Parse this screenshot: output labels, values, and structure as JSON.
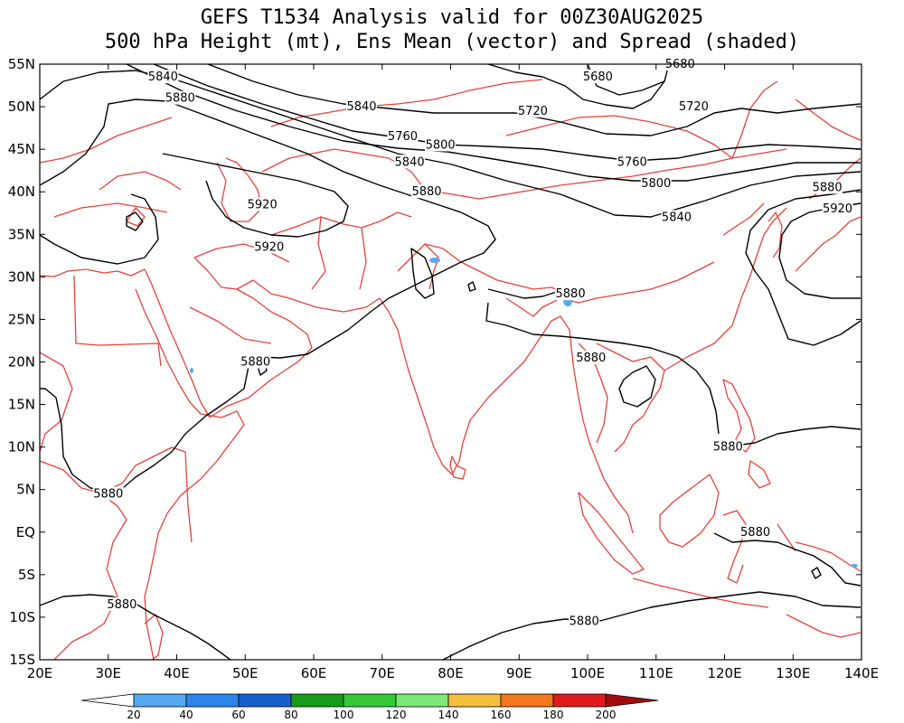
{
  "title": {
    "line1": "GEFS T1534 Analysis valid for 00Z30AUG2025",
    "line2": "500 hPa Height (mt), Ens Mean (vector) and Spread (shaded)"
  },
  "axes": {
    "lon_labels": [
      "20E",
      "30E",
      "40E",
      "50E",
      "60E",
      "70E",
      "80E",
      "90E",
      "100E",
      "110E",
      "120E",
      "130E",
      "140E"
    ],
    "lat_labels": [
      "55N",
      "50N",
      "45N",
      "40N",
      "35N",
      "30N",
      "25N",
      "20N",
      "15N",
      "10N",
      "5N",
      "EQ",
      "5S",
      "10S",
      "15S"
    ],
    "lon_range": [
      20,
      140
    ],
    "lat_range": [
      -15,
      55
    ]
  },
  "colors": {
    "coastline": "#e8413a",
    "contour": "#000000",
    "frame": "#000000"
  },
  "contour_labels": [
    {
      "text": "5680",
      "lon": 101.5,
      "lat": 53.5
    },
    {
      "text": "5680",
      "lon": 113.5,
      "lat": 55.0
    },
    {
      "text": "5720",
      "lon": 92.0,
      "lat": 49.5
    },
    {
      "text": "5720",
      "lon": 115.5,
      "lat": 50.0
    },
    {
      "text": "5760",
      "lon": 73.0,
      "lat": 46.5
    },
    {
      "text": "5760",
      "lon": 106.5,
      "lat": 43.5
    },
    {
      "text": "5800",
      "lon": 78.5,
      "lat": 45.5
    },
    {
      "text": "5800",
      "lon": 110.0,
      "lat": 41.0
    },
    {
      "text": "5840",
      "lon": 38.0,
      "lat": 53.5
    },
    {
      "text": "5840",
      "lon": 67.0,
      "lat": 50.0
    },
    {
      "text": "5840",
      "lon": 74.0,
      "lat": 43.5
    },
    {
      "text": "5840",
      "lon": 113.0,
      "lat": 37.0
    },
    {
      "text": "5880",
      "lon": 40.5,
      "lat": 51.0
    },
    {
      "text": "5880",
      "lon": 76.5,
      "lat": 40.0
    },
    {
      "text": "5880",
      "lon": 135.0,
      "lat": 40.5
    },
    {
      "text": "5880",
      "lon": 97.5,
      "lat": 28.0
    },
    {
      "text": "5880",
      "lon": 100.5,
      "lat": 20.5
    },
    {
      "text": "5880",
      "lon": 51.5,
      "lat": 20.0
    },
    {
      "text": "5880",
      "lon": 120.5,
      "lat": 10.0
    },
    {
      "text": "5880",
      "lon": 30.0,
      "lat": 4.5
    },
    {
      "text": "5880",
      "lon": 124.5,
      "lat": 0.0
    },
    {
      "text": "5880",
      "lon": 32.0,
      "lat": -8.5
    },
    {
      "text": "5880",
      "lon": 99.5,
      "lat": -10.5
    },
    {
      "text": "5920",
      "lon": 52.5,
      "lat": 38.5
    },
    {
      "text": "5920",
      "lon": 53.5,
      "lat": 33.5
    },
    {
      "text": "5920",
      "lon": 136.5,
      "lat": 38.0
    }
  ],
  "colorbar": {
    "labels": [
      "20",
      "40",
      "60",
      "80",
      "100",
      "120",
      "140",
      "160",
      "180",
      "200"
    ],
    "colors": [
      "#ffffff",
      "#55a9f1",
      "#2c85ea",
      "#1660cc",
      "#159c18",
      "#35c93a",
      "#7ce97b",
      "#f5bf3e",
      "#f5781c",
      "#df1b1b",
      "#a00c0c"
    ]
  }
}
